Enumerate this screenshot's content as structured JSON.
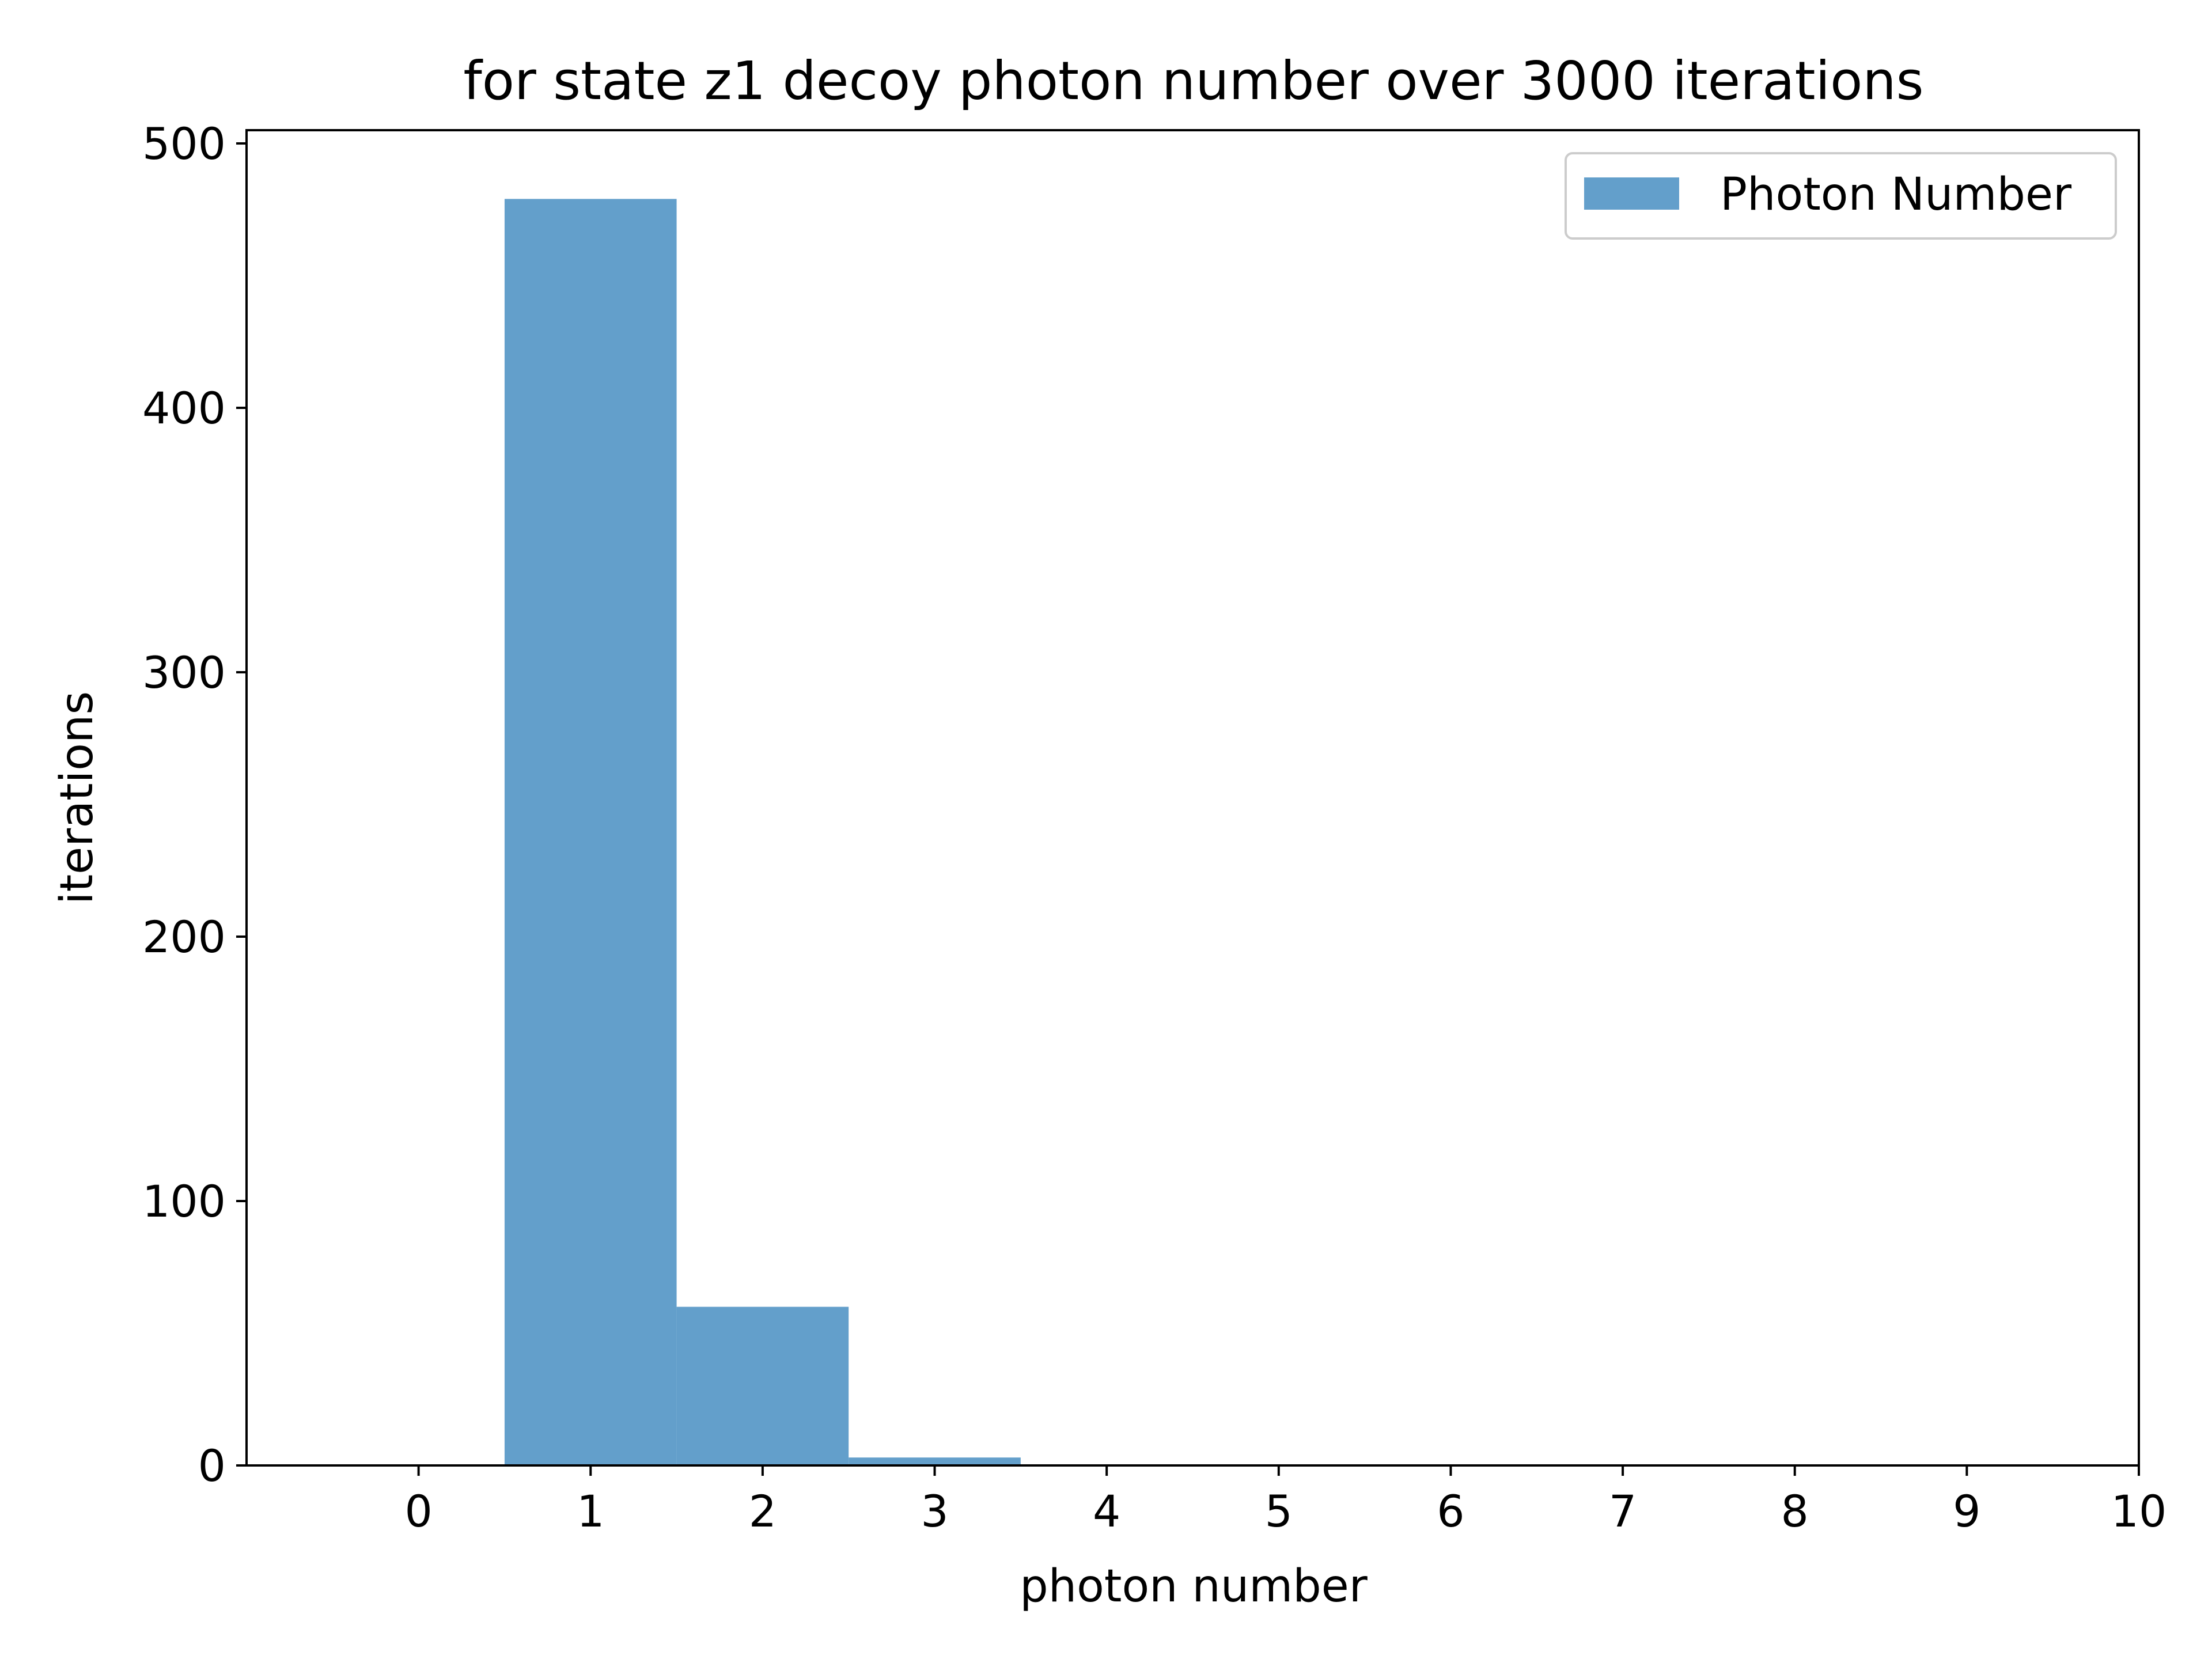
{
  "chart_data": {
    "type": "bar",
    "title": "for state z1 decoy photon number over 3000 iterations",
    "xlabel": "photon number",
    "ylabel": "iterations",
    "series": [
      {
        "name": "Photon Number",
        "color": "#639fcb",
        "bins": [
          {
            "x": 1,
            "value": 479
          },
          {
            "x": 2,
            "value": 60
          },
          {
            "x": 3,
            "value": 3
          }
        ]
      }
    ],
    "bar_width": 1,
    "xlim": [
      -1,
      10
    ],
    "ylim": [
      0,
      505
    ],
    "xticks": [
      0,
      1,
      2,
      3,
      4,
      5,
      6,
      7,
      8,
      9,
      10
    ],
    "yticks": [
      0,
      100,
      200,
      300,
      400,
      500
    ],
    "grid": false,
    "legend": "top-right"
  }
}
